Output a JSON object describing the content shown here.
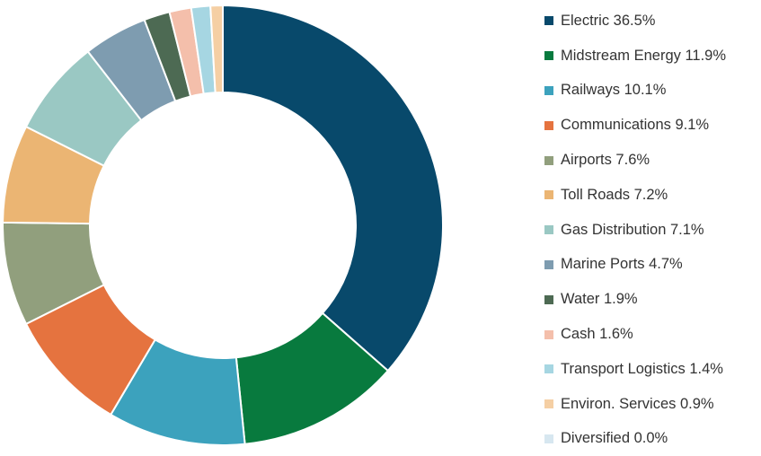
{
  "chart_data": {
    "type": "pie",
    "variant": "donut",
    "title": "",
    "legend_position": "right",
    "slices": [
      {
        "label": "Electric 36.5%",
        "name": "Electric",
        "value": 36.5,
        "color": "#08496B"
      },
      {
        "label": "Midstream Energy 11.9%",
        "name": "Midstream Energy",
        "value": 11.9,
        "color": "#087A3E"
      },
      {
        "label": "Railways 10.1%",
        "name": "Railways",
        "value": 10.1,
        "color": "#3CA2BD"
      },
      {
        "label": "Communications 9.1%",
        "name": "Communications",
        "value": 9.1,
        "color": "#E5733F"
      },
      {
        "label": "Airports 7.6%",
        "name": "Airports",
        "value": 7.6,
        "color": "#919F7D"
      },
      {
        "label": "Toll Roads 7.2%",
        "name": "Toll Roads",
        "value": 7.2,
        "color": "#EBB573"
      },
      {
        "label": "Gas Distribution 7.1%",
        "name": "Gas Distribution",
        "value": 7.1,
        "color": "#9AC8C3"
      },
      {
        "label": "Marine Ports 4.7%",
        "name": "Marine Ports",
        "value": 4.7,
        "color": "#7E9CB0"
      },
      {
        "label": "Water 1.9%",
        "name": "Water",
        "value": 1.9,
        "color": "#4D6A53"
      },
      {
        "label": "Cash 1.6%",
        "name": "Cash",
        "value": 1.6,
        "color": "#F4BFAB"
      },
      {
        "label": "Transport Logistics 1.4%",
        "name": "Transport Logistics",
        "value": 1.4,
        "color": "#A6D6E2"
      },
      {
        "label": "Environ. Services 0.9%",
        "name": "Environ. Services",
        "value": 0.9,
        "color": "#F5CFA4"
      },
      {
        "label": "Diversified 0.0%",
        "name": "Diversified",
        "value": 0.0,
        "color": "#D7E7F0"
      }
    ]
  }
}
